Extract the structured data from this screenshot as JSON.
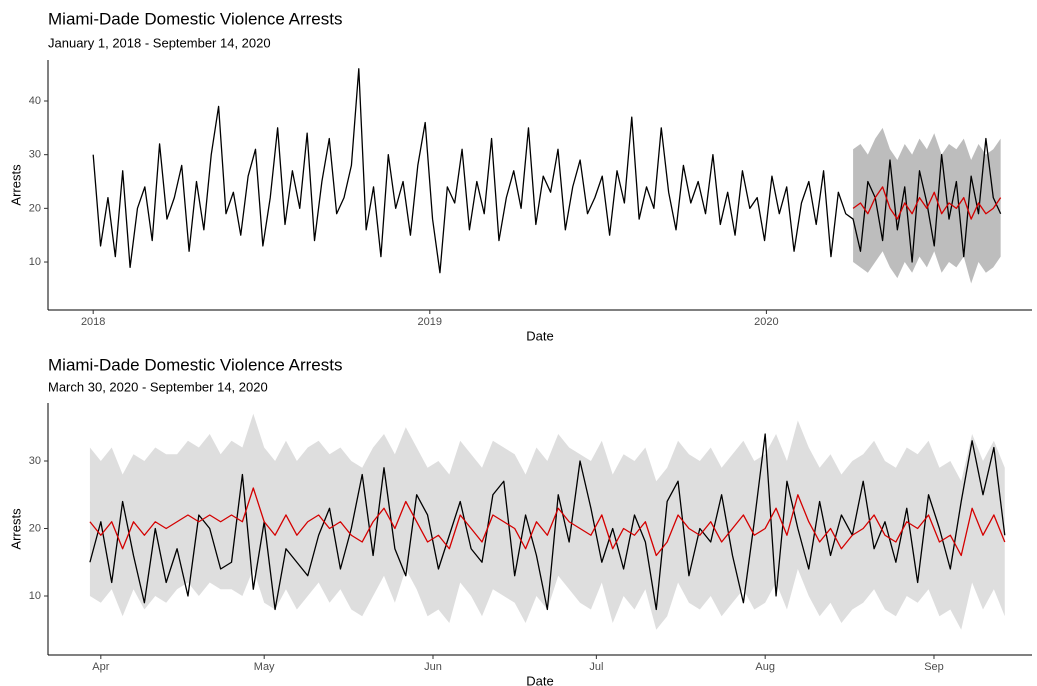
{
  "chart_data": [
    {
      "type": "line",
      "title": "Miami-Dade Domestic Violence Arrests",
      "subtitle": "January 1, 2018 - September 14, 2020",
      "xlabel": "Date",
      "ylabel": "Arrests",
      "xlim": [
        -49,
        1018
      ],
      "xticks": [
        {
          "value": 0,
          "label": "2018"
        },
        {
          "value": 365,
          "label": "2019"
        },
        {
          "value": 730,
          "label": "2020"
        }
      ],
      "ylim": [
        1.06,
        47.64
      ],
      "yticks": [
        10,
        20,
        30,
        40
      ],
      "band": {
        "color": "#bdbdbd",
        "x": [
          824,
          832,
          840,
          848,
          856,
          864,
          872,
          880,
          888,
          896,
          904,
          912,
          920,
          928,
          936,
          944,
          952,
          960,
          968,
          976,
          984
        ],
        "lower": [
          10,
          9,
          8,
          10,
          12,
          9,
          7,
          10,
          8,
          11,
          9,
          12,
          8,
          10,
          9,
          11,
          6,
          10,
          8,
          9,
          11
        ],
        "upper": [
          31,
          32,
          30,
          33,
          35,
          31,
          29,
          32,
          30,
          33,
          31,
          34,
          30,
          32,
          31,
          33,
          29,
          32,
          30,
          31,
          33
        ]
      },
      "series": [
        {
          "color": "#000000",
          "x": [
            0,
            8,
            16,
            24,
            32,
            40,
            48,
            56,
            64,
            72,
            80,
            88,
            96,
            104,
            112,
            120,
            128,
            136,
            144,
            152,
            160,
            168,
            176,
            184,
            192,
            200,
            208,
            216,
            224,
            232,
            240,
            248,
            256,
            264,
            272,
            280,
            288,
            296,
            304,
            312,
            320,
            328,
            336,
            344,
            352,
            360,
            368,
            376,
            384,
            392,
            400,
            408,
            416,
            424,
            432,
            440,
            448,
            456,
            464,
            472,
            480,
            488,
            496,
            504,
            512,
            520,
            528,
            536,
            544,
            552,
            560,
            568,
            576,
            584,
            592,
            600,
            608,
            616,
            624,
            632,
            640,
            648,
            656,
            664,
            672,
            680,
            688,
            696,
            704,
            712,
            720,
            728,
            736,
            744,
            752,
            760,
            768,
            776,
            784,
            792,
            800,
            808,
            816,
            824,
            832,
            840,
            848,
            856,
            864,
            872,
            880,
            888,
            896,
            904,
            912,
            920,
            928,
            936,
            944,
            952,
            960,
            968,
            976,
            984
          ],
          "values": [
            30,
            13,
            22,
            11,
            27,
            9,
            20,
            24,
            14,
            32,
            18,
            22,
            28,
            12,
            25,
            16,
            30,
            39,
            19,
            23,
            15,
            26,
            31,
            13,
            22,
            35,
            17,
            27,
            20,
            34,
            14,
            25,
            33,
            19,
            22,
            28,
            46,
            16,
            24,
            11,
            30,
            20,
            25,
            15,
            28,
            36,
            18,
            8,
            24,
            21,
            31,
            16,
            25,
            19,
            33,
            14,
            22,
            27,
            20,
            35,
            17,
            26,
            23,
            31,
            16,
            24,
            29,
            19,
            22,
            26,
            15,
            27,
            21,
            37,
            18,
            24,
            20,
            35,
            23,
            16,
            28,
            21,
            25,
            19,
            30,
            17,
            23,
            15,
            27,
            20,
            22,
            14,
            26,
            19,
            24,
            12,
            21,
            25,
            17,
            27,
            11,
            23,
            19,
            18,
            12,
            25,
            22,
            14,
            29,
            16,
            24,
            10,
            27,
            21,
            13,
            30,
            18,
            25,
            11,
            26,
            19,
            33,
            22,
            19
          ]
        },
        {
          "color": "#d40000",
          "x": [
            824,
            832,
            840,
            848,
            856,
            864,
            872,
            880,
            888,
            896,
            904,
            912,
            920,
            928,
            936,
            944,
            952,
            960,
            968,
            976,
            984
          ],
          "values": [
            20,
            21,
            19,
            22,
            24,
            20,
            18,
            21,
            19,
            22,
            20,
            23,
            19,
            21,
            20,
            22,
            18,
            21,
            19,
            20,
            22
          ]
        }
      ]
    },
    {
      "type": "line",
      "title": "Miami-Dade Domestic Violence Arrests",
      "subtitle": "March 30, 2020 - September 14, 2020",
      "xlabel": "Date",
      "ylabel": "Arrests",
      "xlim": [
        82.3,
        263
      ],
      "xticks": [
        {
          "value": 92,
          "label": "Apr"
        },
        {
          "value": 122,
          "label": "May"
        },
        {
          "value": 153,
          "label": "Jun"
        },
        {
          "value": 183,
          "label": "Jul"
        },
        {
          "value": 214,
          "label": "Aug"
        },
        {
          "value": 245,
          "label": "Sep"
        }
      ],
      "ylim": [
        1.26,
        38.59
      ],
      "yticks": [
        10,
        20,
        30
      ],
      "x": [
        90,
        92,
        94,
        96,
        98,
        100,
        102,
        104,
        106,
        108,
        110,
        112,
        114,
        116,
        118,
        120,
        122,
        124,
        126,
        128,
        130,
        132,
        134,
        136,
        138,
        140,
        142,
        144,
        146,
        148,
        150,
        152,
        154,
        156,
        158,
        160,
        162,
        164,
        166,
        168,
        170,
        172,
        174,
        176,
        178,
        180,
        182,
        184,
        186,
        188,
        190,
        192,
        194,
        196,
        198,
        200,
        202,
        204,
        206,
        208,
        210,
        212,
        214,
        216,
        218,
        220,
        222,
        224,
        226,
        228,
        230,
        232,
        234,
        236,
        238,
        240,
        242,
        244,
        246,
        248,
        250,
        252,
        254,
        256,
        258
      ],
      "band": {
        "color": "#dedede",
        "lower": [
          10,
          9,
          11,
          7,
          11,
          8,
          10,
          9,
          11,
          12,
          10,
          12,
          11,
          11,
          10,
          14,
          9,
          8,
          11,
          8,
          10,
          12,
          9,
          11,
          8,
          7,
          10,
          13,
          9,
          14,
          11,
          7,
          8,
          6,
          12,
          10,
          7,
          11,
          10,
          9,
          6,
          10,
          8,
          13,
          11,
          9,
          8,
          12,
          6,
          10,
          8,
          11,
          5,
          7,
          12,
          9,
          8,
          10,
          7,
          9,
          11,
          8,
          9,
          12,
          8,
          14,
          10,
          7,
          9,
          6,
          8,
          9,
          11,
          8,
          7,
          10,
          9,
          11,
          7,
          8,
          5,
          12,
          8,
          11,
          7
        ],
        "upper": [
          32,
          30,
          32,
          28,
          31,
          30,
          32,
          31,
          31,
          33,
          32,
          34,
          31,
          33,
          32,
          37,
          32,
          30,
          33,
          30,
          32,
          33,
          31,
          32,
          30,
          29,
          32,
          34,
          31,
          35,
          32,
          29,
          30,
          28,
          33,
          31,
          29,
          33,
          32,
          31,
          28,
          32,
          30,
          34,
          32,
          31,
          30,
          33,
          28,
          31,
          30,
          32,
          27,
          29,
          33,
          31,
          30,
          32,
          29,
          31,
          33,
          30,
          31,
          34,
          30,
          36,
          32,
          29,
          31,
          28,
          30,
          31,
          33,
          30,
          29,
          32,
          31,
          33,
          29,
          30,
          27,
          34,
          30,
          33,
          29
        ]
      },
      "series": [
        {
          "color": "#000000",
          "values": [
            15,
            21,
            12,
            24,
            16,
            9,
            20,
            12,
            17,
            10,
            22,
            20,
            14,
            15,
            28,
            11,
            21,
            8,
            17,
            15,
            13,
            19,
            23,
            14,
            20,
            28,
            16,
            29,
            17,
            13,
            25,
            22,
            14,
            19,
            24,
            17,
            15,
            25,
            27,
            13,
            22,
            16,
            8,
            25,
            18,
            30,
            23,
            15,
            20,
            14,
            22,
            18,
            8,
            24,
            27,
            13,
            20,
            18,
            25,
            16,
            9,
            21,
            34,
            10,
            27,
            20,
            14,
            24,
            16,
            22,
            19,
            27,
            17,
            21,
            15,
            23,
            12,
            25,
            20,
            14,
            24,
            33,
            25,
            32,
            19
          ]
        },
        {
          "color": "#d40000",
          "values": [
            21,
            19,
            21,
            17,
            21,
            19,
            21,
            20,
            21,
            22,
            21,
            22,
            21,
            22,
            21,
            26,
            21,
            19,
            22,
            19,
            21,
            22,
            20,
            21,
            19,
            18,
            21,
            23,
            20,
            24,
            21,
            18,
            19,
            17,
            22,
            20,
            18,
            22,
            21,
            20,
            17,
            21,
            19,
            23,
            21,
            20,
            19,
            22,
            17,
            20,
            19,
            21,
            16,
            18,
            22,
            20,
            19,
            21,
            18,
            20,
            22,
            19,
            20,
            23,
            19,
            25,
            21,
            18,
            20,
            17,
            19,
            20,
            22,
            19,
            18,
            21,
            20,
            22,
            18,
            19,
            16,
            23,
            19,
            22,
            18
          ]
        }
      ]
    }
  ]
}
